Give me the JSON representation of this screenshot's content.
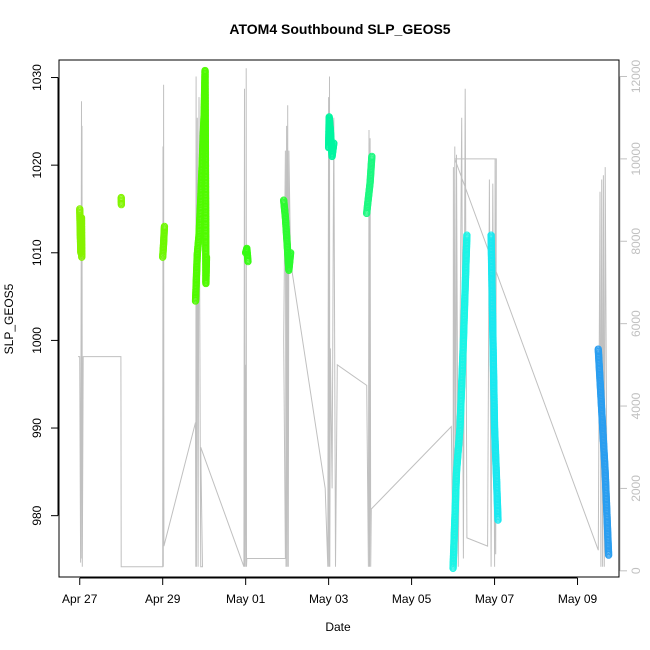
{
  "chart_data": {
    "type": "scatter",
    "title": "ATOM4 Southbound SLP_GEOS5",
    "xlabel": "Date",
    "ylabel": "SLP_GEOS5",
    "xlim": [
      "2016-04-26T12:00",
      "2016-05-10T00:00"
    ],
    "ylim": [
      973,
      1032
    ],
    "x_ticks": [
      {
        "date": "2016-04-27",
        "label": "Apr 27"
      },
      {
        "date": "2016-04-29",
        "label": "Apr 29"
      },
      {
        "date": "2016-05-01",
        "label": "May 01"
      },
      {
        "date": "2016-05-03",
        "label": "May 03"
      },
      {
        "date": "2016-05-05",
        "label": "May 05"
      },
      {
        "date": "2016-05-07",
        "label": "May 07"
      },
      {
        "date": "2016-05-09",
        "label": "May 09"
      }
    ],
    "y_ticks": [
      980,
      990,
      1000,
      1010,
      1020,
      1030
    ],
    "y2lim": [
      -150,
      12400
    ],
    "y2_ticks": [
      0,
      2000,
      4000,
      6000,
      8000,
      10000,
      12000
    ],
    "y2_color": "#c0c0c0",
    "y2_series": {
      "name": "",
      "color": "#c0c0c0",
      "points": [
        [
          "2016-04-26T23:00",
          5200
        ],
        [
          "2016-04-27T00:00",
          5200
        ],
        [
          "2016-04-27T00:30",
          200
        ],
        [
          "2016-04-27T01:00",
          11400
        ],
        [
          "2016-04-27T01:10",
          300
        ],
        [
          "2016-04-27T01:20",
          10800
        ],
        [
          "2016-04-27T01:30",
          100
        ],
        [
          "2016-04-27T02:00",
          5200
        ],
        [
          "2016-04-27T23:50",
          5200
        ],
        [
          "2016-04-28T00:00",
          100
        ],
        [
          "2016-04-28T00:00",
          100
        ],
        [
          "2016-04-29T00:00",
          100
        ],
        [
          "2016-04-29T00:10",
          10300
        ],
        [
          "2016-04-29T00:20",
          100
        ],
        [
          "2016-04-29T00:30",
          11800
        ],
        [
          "2016-04-29T00:40",
          600
        ],
        [
          "2016-04-29T19:00",
          3600
        ],
        [
          "2016-04-29T19:10",
          100
        ],
        [
          "2016-04-29T19:20",
          12000
        ],
        [
          "2016-04-29T19:30",
          100
        ],
        [
          "2016-04-29T20:00",
          11000
        ],
        [
          "2016-04-29T20:30",
          100
        ],
        [
          "2016-04-29T21:00",
          11500
        ],
        [
          "2016-04-29T22:00",
          100
        ],
        [
          "2016-04-29T23:00",
          100
        ],
        [
          "2016-04-29T22:00",
          3000
        ],
        [
          "2016-04-30T23:00",
          100
        ],
        [
          "2016-04-30T23:20",
          11700
        ],
        [
          "2016-04-30T23:30",
          100
        ],
        [
          "2016-05-01T00:00",
          5000
        ],
        [
          "2016-05-01T00:10",
          100
        ],
        [
          "2016-05-01T00:20",
          12200
        ],
        [
          "2016-05-01T00:30",
          100
        ],
        [
          "2016-05-01T00:40",
          300
        ],
        [
          "2016-05-01T23:00",
          300
        ],
        [
          "2016-05-01T22:00",
          5600
        ],
        [
          "2016-05-01T23:00",
          10200
        ],
        [
          "2016-05-01T23:20",
          100
        ],
        [
          "2016-05-01T23:40",
          10800
        ],
        [
          "2016-05-02T00:00",
          100
        ],
        [
          "2016-05-02T00:20",
          11300
        ],
        [
          "2016-05-02T00:40",
          100
        ],
        [
          "2016-05-02T01:00",
          10200
        ],
        [
          "2016-05-02T02:00",
          7500
        ],
        [
          "2016-05-02T22:00",
          2000
        ],
        [
          "2016-05-02T23:30",
          100
        ],
        [
          "2016-05-03T00:00",
          11500
        ],
        [
          "2016-05-03T00:10",
          100
        ],
        [
          "2016-05-03T00:30",
          12000
        ],
        [
          "2016-05-03T00:40",
          100
        ],
        [
          "2016-05-03T01:00",
          5400
        ],
        [
          "2016-05-03T02:00",
          2000
        ],
        [
          "2016-05-03T03:00",
          11000
        ],
        [
          "2016-05-03T04:00",
          100
        ],
        [
          "2016-05-03T05:00",
          5000
        ],
        [
          "2016-05-03T22:00",
          4500
        ],
        [
          "2016-05-03T23:00",
          100
        ],
        [
          "2016-05-03T23:20",
          10700
        ],
        [
          "2016-05-03T23:40",
          100
        ],
        [
          "2016-05-04T00:00",
          10500
        ],
        [
          "2016-05-04T00:20",
          100
        ],
        [
          "2016-05-04T00:40",
          1500
        ],
        [
          "2016-05-05T23:00",
          3500
        ],
        [
          "2016-05-06T00:00",
          100
        ],
        [
          "2016-05-06T00:10",
          9800
        ],
        [
          "2016-05-06T00:20",
          100
        ],
        [
          "2016-05-06T01:00",
          10300
        ],
        [
          "2016-05-06T01:30",
          100
        ],
        [
          "2016-05-06T02:00",
          10100
        ],
        [
          "2016-05-06T03:00",
          100
        ],
        [
          "2016-05-06T05:00",
          11000
        ],
        [
          "2016-05-06T06:00",
          300
        ],
        [
          "2016-05-06T07:00",
          11700
        ],
        [
          "2016-05-06T08:00",
          800
        ],
        [
          "2016-05-06T20:00",
          600
        ],
        [
          "2016-05-06T21:00",
          9500
        ],
        [
          "2016-05-06T22:00",
          100
        ],
        [
          "2016-05-06T23:00",
          9400
        ],
        [
          "2016-05-07T00:00",
          100
        ],
        [
          "2016-05-07T00:20",
          10000
        ],
        [
          "2016-05-07T00:40",
          400
        ],
        [
          "2016-05-07T01:00",
          10000
        ],
        [
          "2016-05-06T01:00",
          10000
        ],
        [
          "2016-05-09T12:00",
          500
        ],
        [
          "2016-05-09T13:00",
          9200
        ],
        [
          "2016-05-09T13:30",
          100
        ],
        [
          "2016-05-09T14:00",
          9500
        ],
        [
          "2016-05-09T14:30",
          100
        ],
        [
          "2016-05-09T15:00",
          9600
        ],
        [
          "2016-05-09T15:30",
          100
        ],
        [
          "2016-05-09T16:00",
          9800
        ],
        [
          "2016-05-09T17:00",
          2000
        ]
      ]
    },
    "series": [
      {
        "color": "#86f200",
        "points": [
          [
            "2016-04-27T00:00",
            1015
          ],
          [
            "2016-04-27T00:20",
            1012
          ],
          [
            "2016-04-27T00:40",
            1010
          ],
          [
            "2016-04-27T01:00",
            1014
          ],
          [
            "2016-04-27T01:10",
            1009.5
          ]
        ]
      },
      {
        "color": "#82f500",
        "points": [
          [
            "2016-04-28T00:00",
            1016.3
          ],
          [
            "2016-04-28T00:05",
            1015.5
          ]
        ]
      },
      {
        "color": "#6ff800",
        "points": [
          [
            "2016-04-29T00:00",
            1009.5
          ],
          [
            "2016-04-29T00:30",
            1011
          ],
          [
            "2016-04-29T01:00",
            1013
          ]
        ]
      },
      {
        "color": "#50fa00",
        "points": [
          [
            "2016-04-29T19:00",
            1004.5
          ],
          [
            "2016-04-29T20:00",
            1009.8
          ],
          [
            "2016-04-29T21:00",
            1012
          ],
          [
            "2016-04-29T22:00",
            1016
          ],
          [
            "2016-04-29T23:00",
            1021
          ],
          [
            "2016-04-30T00:00",
            1026
          ],
          [
            "2016-04-30T00:30",
            1030.8
          ],
          [
            "2016-04-30T01:00",
            1006.5
          ],
          [
            "2016-04-30T01:20",
            1009.5
          ]
        ]
      },
      {
        "color": "#36fb12",
        "points": [
          [
            "2016-05-01T00:00",
            1010
          ],
          [
            "2016-05-01T00:40",
            1010.5
          ],
          [
            "2016-05-01T01:20",
            1009
          ]
        ]
      },
      {
        "color": "#2cfb30",
        "points": [
          [
            "2016-05-01T22:00",
            1016
          ],
          [
            "2016-05-01T23:00",
            1014
          ],
          [
            "2016-05-02T00:00",
            1011
          ],
          [
            "2016-05-02T01:00",
            1008
          ],
          [
            "2016-05-02T02:00",
            1010
          ]
        ]
      },
      {
        "color": "#00f5a0",
        "points": [
          [
            "2016-05-03T00:00",
            1022
          ],
          [
            "2016-05-03T00:20",
            1025.5
          ],
          [
            "2016-05-03T01:00",
            1024
          ],
          [
            "2016-05-03T02:00",
            1021
          ],
          [
            "2016-05-03T03:00",
            1022.5
          ]
        ]
      },
      {
        "color": "#1cf880",
        "points": [
          [
            "2016-05-03T22:00",
            1014.5
          ],
          [
            "2016-05-04T00:00",
            1018
          ],
          [
            "2016-05-04T01:00",
            1021
          ]
        ]
      },
      {
        "color": "#1cf4e6",
        "points": [
          [
            "2016-05-06T00:00",
            974
          ],
          [
            "2016-05-06T02:00",
            985
          ],
          [
            "2016-05-06T04:00",
            990
          ],
          [
            "2016-05-06T06:00",
            1000
          ],
          [
            "2016-05-06T08:00",
            1012
          ]
        ]
      },
      {
        "color": "#1ae8f0",
        "points": [
          [
            "2016-05-06T22:00",
            1012
          ],
          [
            "2016-05-07T00:00",
            990
          ],
          [
            "2016-05-07T01:00",
            985
          ],
          [
            "2016-05-07T02:00",
            979.5
          ]
        ]
      },
      {
        "color": "#2a9ef0",
        "points": [
          [
            "2016-05-09T12:00",
            999
          ],
          [
            "2016-05-09T14:00",
            992
          ],
          [
            "2016-05-09T16:00",
            985
          ],
          [
            "2016-05-09T18:00",
            975.5
          ]
        ]
      }
    ],
    "legend": "none",
    "grid": false
  }
}
